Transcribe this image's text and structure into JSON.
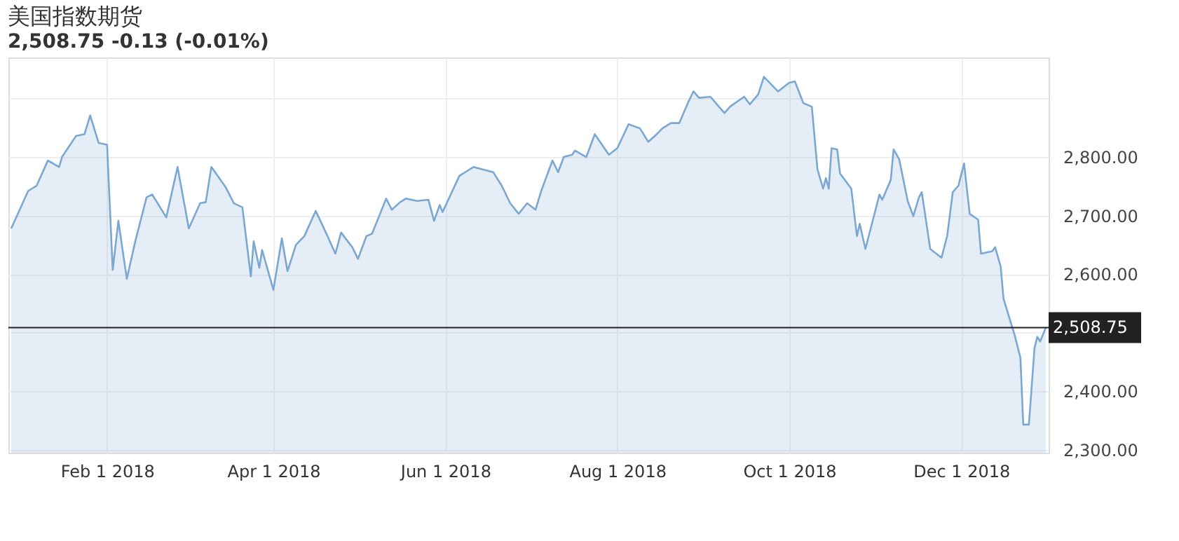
{
  "chart_data": {
    "type": "area",
    "title": "美国指数期货",
    "subtitle": "2,508.75  -0.13  (-0.01%)",
    "x": [
      "2017-12-29",
      "2018-01-04",
      "2018-01-07",
      "2018-01-11",
      "2018-01-15",
      "2018-01-16",
      "2018-01-21",
      "2018-01-24",
      "2018-01-26",
      "2018-01-29",
      "2018-02-01",
      "2018-02-03",
      "2018-02-05",
      "2018-02-08",
      "2018-02-11",
      "2018-02-15",
      "2018-02-17",
      "2018-02-22",
      "2018-02-26",
      "2018-03-02",
      "2018-03-06",
      "2018-03-08",
      "2018-03-10",
      "2018-03-15",
      "2018-03-18",
      "2018-03-21",
      "2018-03-24",
      "2018-03-25",
      "2018-03-27",
      "2018-03-28",
      "2018-04-01",
      "2018-04-04",
      "2018-04-06",
      "2018-04-09",
      "2018-04-12",
      "2018-04-16",
      "2018-04-20",
      "2018-04-23",
      "2018-04-25",
      "2018-04-29",
      "2018-05-01",
      "2018-05-04",
      "2018-05-06",
      "2018-05-11",
      "2018-05-13",
      "2018-05-16",
      "2018-05-18",
      "2018-05-22",
      "2018-05-26",
      "2018-05-28",
      "2018-05-30",
      "2018-05-31",
      "2018-06-06",
      "2018-06-11",
      "2018-06-14",
      "2018-06-18",
      "2018-06-21",
      "2018-06-24",
      "2018-06-27",
      "2018-06-30",
      "2018-07-03",
      "2018-07-05",
      "2018-07-09",
      "2018-07-11",
      "2018-07-13",
      "2018-07-16",
      "2018-07-17",
      "2018-07-21",
      "2018-07-24",
      "2018-07-29",
      "2018-08-01",
      "2018-08-05",
      "2018-08-09",
      "2018-08-12",
      "2018-08-15",
      "2018-08-17",
      "2018-08-20",
      "2018-08-23",
      "2018-08-26",
      "2018-08-28",
      "2018-08-30",
      "2018-09-03",
      "2018-09-08",
      "2018-09-10",
      "2018-09-15",
      "2018-09-17",
      "2018-09-20",
      "2018-09-22",
      "2018-09-27",
      "2018-10-01",
      "2018-10-03",
      "2018-10-06",
      "2018-10-09",
      "2018-10-11",
      "2018-10-13",
      "2018-10-14",
      "2018-10-15",
      "2018-10-16",
      "2018-10-18",
      "2018-10-19",
      "2018-10-23",
      "2018-10-25",
      "2018-10-26",
      "2018-10-28",
      "2018-11-02",
      "2018-11-03",
      "2018-11-06",
      "2018-11-07",
      "2018-11-09",
      "2018-11-12",
      "2018-11-14",
      "2018-11-16",
      "2018-11-17",
      "2018-11-20",
      "2018-11-24",
      "2018-11-26",
      "2018-11-28",
      "2018-11-30",
      "2018-12-02",
      "2018-12-04",
      "2018-12-07",
      "2018-12-08",
      "2018-12-12",
      "2018-12-13",
      "2018-12-15",
      "2018-12-16",
      "2018-12-20",
      "2018-12-22",
      "2018-12-23",
      "2018-12-25",
      "2018-12-27",
      "2018-12-28",
      "2018-12-29",
      "2018-12-31"
    ],
    "series": [
      {
        "color": "#7ba7d3",
        "values": [
          2678,
          2742,
          2751,
          2794,
          2783,
          2800,
          2836,
          2839,
          2871,
          2824,
          2821,
          2607,
          2691,
          2592,
          2656,
          2731,
          2736,
          2697,
          2783,
          2678,
          2721,
          2723,
          2783,
          2749,
          2721,
          2714,
          2596,
          2656,
          2611,
          2641,
          2573,
          2661,
          2605,
          2650,
          2665,
          2708,
          2667,
          2635,
          2671,
          2646,
          2626,
          2665,
          2669,
          2729,
          2710,
          2723,
          2729,
          2725,
          2727,
          2691,
          2718,
          2706,
          2768,
          2783,
          2779,
          2774,
          2751,
          2721,
          2703,
          2721,
          2710,
          2742,
          2794,
          2774,
          2800,
          2804,
          2811,
          2800,
          2839,
          2804,
          2815,
          2856,
          2849,
          2826,
          2839,
          2849,
          2858,
          2858,
          2892,
          2912,
          2901,
          2903,
          2875,
          2886,
          2903,
          2890,
          2907,
          2937,
          2912,
          2927,
          2929,
          2892,
          2886,
          2779,
          2746,
          2764,
          2746,
          2815,
          2813,
          2772,
          2746,
          2665,
          2686,
          2643,
          2736,
          2727,
          2761,
          2813,
          2796,
          2725,
          2699,
          2731,
          2740,
          2643,
          2628,
          2665,
          2740,
          2751,
          2789,
          2703,
          2693,
          2635,
          2639,
          2646,
          2613,
          2558,
          2495,
          2457,
          2343,
          2343,
          2474,
          2493,
          2485,
          2508.75
        ]
      }
    ],
    "xlim": [
      "2017-12-28",
      "2019-01-01"
    ],
    "xticks": [
      {
        "value": "2018-02-01",
        "label": "Feb 1 2018"
      },
      {
        "value": "2018-04-01",
        "label": "Apr 1 2018"
      },
      {
        "value": "2018-06-01",
        "label": "Jun 1 2018"
      },
      {
        "value": "2018-08-01",
        "label": "Aug 1 2018"
      },
      {
        "value": "2018-10-01",
        "label": "Oct 1 2018"
      },
      {
        "value": "2018-12-01",
        "label": "Dec 1 2018"
      }
    ],
    "ylim": [
      2295,
      2970
    ],
    "yticks": [
      {
        "value": 2300,
        "label": "2,300.00"
      },
      {
        "value": 2400,
        "label": "2,400.00"
      },
      {
        "value": 2500,
        "label": null
      },
      {
        "value": 2600,
        "label": "2,600.00"
      },
      {
        "value": 2700,
        "label": "2,700.00"
      },
      {
        "value": 2800,
        "label": "2,800.00"
      },
      {
        "value": 2900,
        "label": null
      }
    ],
    "ref_lines": [
      {
        "axis": "y",
        "value": 2508.75,
        "label": "2,508.75",
        "color": "#222222"
      }
    ],
    "grid": true
  }
}
